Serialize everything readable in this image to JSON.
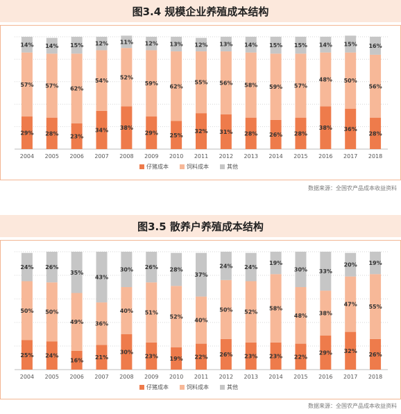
{
  "colors": {
    "piglet": "#ee7b4b",
    "feed": "#f7b898",
    "other": "#c6c6c6",
    "title_bg": "#fce8dc",
    "frame_border": "#f3b592"
  },
  "legend": [
    "仔猪成本",
    "饲料成本",
    "其他"
  ],
  "source_text": "数据来源：全国农产品成本收益资料",
  "chart_data": [
    {
      "type": "bar",
      "stacked": true,
      "title": "图3.4 规模企业养殖成本结构",
      "categories": [
        "2004",
        "2005",
        "2006",
        "2007",
        "2008",
        "2009",
        "2010",
        "2011",
        "2012",
        "2013",
        "2014",
        "2015",
        "2016",
        "2017",
        "2018"
      ],
      "series": [
        {
          "name": "仔猪成本",
          "values": [
            29,
            28,
            23,
            34,
            38,
            29,
            25,
            32,
            31,
            28,
            26,
            28,
            38,
            36,
            28
          ]
        },
        {
          "name": "饲料成本",
          "values": [
            57,
            57,
            62,
            54,
            52,
            59,
            62,
            55,
            56,
            58,
            59,
            57,
            48,
            50,
            56
          ]
        },
        {
          "name": "其他",
          "values": [
            14,
            14,
            15,
            12,
            11,
            12,
            13,
            12,
            13,
            14,
            15,
            15,
            14,
            15,
            16
          ]
        }
      ],
      "ylim": [
        0,
        100
      ],
      "legend_position": "bottom"
    },
    {
      "type": "bar",
      "stacked": true,
      "title": "图3.5 散养户养殖成本结构",
      "categories": [
        "2004",
        "2005",
        "2006",
        "2007",
        "2008",
        "2009",
        "2010",
        "2011",
        "2012",
        "2013",
        "2014",
        "2015",
        "2016",
        "2017",
        "2018"
      ],
      "series": [
        {
          "name": "仔猪成本",
          "values": [
            25,
            24,
            16,
            21,
            30,
            23,
            19,
            22,
            26,
            23,
            23,
            22,
            29,
            32,
            26
          ]
        },
        {
          "name": "饲料成本",
          "values": [
            50,
            50,
            49,
            36,
            40,
            51,
            52,
            40,
            50,
            52,
            58,
            48,
            38,
            47,
            55
          ]
        },
        {
          "name": "其他",
          "values": [
            24,
            26,
            35,
            43,
            30,
            26,
            28,
            37,
            24,
            24,
            19,
            30,
            33,
            20,
            19
          ]
        }
      ],
      "ylim": [
        0,
        100
      ],
      "legend_position": "bottom"
    }
  ]
}
